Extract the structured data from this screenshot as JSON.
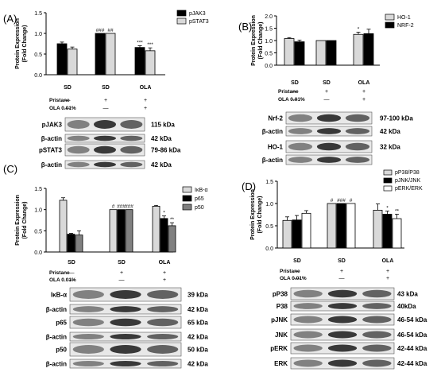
{
  "colors": {
    "black": "#000000",
    "light_gray": "#d9d9d9",
    "dark_gray": "#808080",
    "white": "#ffffff",
    "blot_bg": "#e8e8e8"
  },
  "common": {
    "ylabel_line1": "Protein Expression",
    "ylabel_line2": "(Fold Change)",
    "pristane_label": "Pristane",
    "ola_label": "OLA  0.01%",
    "pristane_signs": [
      "—",
      "+",
      "+"
    ],
    "ola_signs": [
      "—",
      "—",
      "+"
    ],
    "group_labels": [
      "SD",
      "SD",
      "OLA"
    ]
  },
  "chart_data": [
    {
      "panel": "(A)",
      "type": "bar",
      "categories": [
        "SD",
        "SD",
        "OLA"
      ],
      "ylim": [
        0,
        1.5
      ],
      "yticks": [
        "0.0",
        "0.5",
        "1.0",
        "1.5"
      ],
      "tick_values": [
        0,
        0.5,
        1.0,
        1.5
      ],
      "series": [
        {
          "name": "pJAK3",
          "color": "black",
          "values": [
            0.75,
            1.0,
            0.66
          ],
          "errors": [
            0.04,
            0,
            0.04
          ],
          "sig": [
            "",
            "###",
            "***"
          ]
        },
        {
          "name": "pSTAT3",
          "color": "light_gray",
          "values": [
            0.62,
            1.0,
            0.58
          ],
          "errors": [
            0.05,
            0,
            0.07
          ],
          "sig": [
            "",
            "##",
            "***"
          ]
        }
      ],
      "blots": [
        {
          "label": "pJAK3",
          "kda": "115 kDa"
        },
        {
          "label": "β-actin",
          "kda": "42 kDa"
        },
        {
          "label": "pSTAT3",
          "kda": "79-86 kDa"
        },
        {
          "label": "β-actin",
          "kda": "42 kDa"
        }
      ]
    },
    {
      "panel": "(B)",
      "type": "bar",
      "categories": [
        "SD",
        "SD",
        "OLA"
      ],
      "ylim": [
        0,
        2.0
      ],
      "yticks": [
        "0.0",
        "0.5",
        "1.0",
        "1.5",
        "2.0"
      ],
      "tick_values": [
        0,
        0.5,
        1.0,
        1.5,
        2.0
      ],
      "series": [
        {
          "name": "HO-1",
          "color": "light_gray",
          "values": [
            1.08,
            1.0,
            1.25
          ],
          "errors": [
            0.04,
            0,
            0.09
          ],
          "sig": [
            "",
            "",
            "*"
          ]
        },
        {
          "name": "NRF-2",
          "color": "black",
          "values": [
            0.95,
            1.0,
            1.28
          ],
          "errors": [
            0.07,
            0,
            0.18
          ],
          "sig": [
            "",
            "",
            ""
          ]
        }
      ],
      "blots": [
        {
          "label": "Nrf-2",
          "kda": "97-100 kDa"
        },
        {
          "label": "β-actin",
          "kda": "42 kDa"
        },
        {
          "label": "HO-1",
          "kda": "32 kDa"
        },
        {
          "label": "β-actin",
          "kda": ""
        }
      ]
    },
    {
      "panel": "(C)",
      "type": "bar",
      "categories": [
        "SD",
        "SD",
        "OLA"
      ],
      "ylim": [
        0,
        1.5
      ],
      "yticks": [
        "0.0",
        "0.5",
        "1.0",
        "1.5"
      ],
      "tick_values": [
        0,
        0.5,
        1.0,
        1.5
      ],
      "series": [
        {
          "name": "IκB-α",
          "color": "light_gray",
          "values": [
            1.22,
            1.0,
            1.08
          ],
          "errors": [
            0.06,
            0,
            0.02
          ],
          "sig": [
            "",
            "#",
            ""
          ]
        },
        {
          "name": "p65",
          "color": "black",
          "values": [
            0.42,
            1.0,
            0.79
          ],
          "errors": [
            0.02,
            0,
            0.06
          ],
          "sig": [
            "",
            "###",
            "*"
          ]
        },
        {
          "name": "p50",
          "color": "dark_gray",
          "values": [
            0.4,
            1.0,
            0.62
          ],
          "errors": [
            0.1,
            0,
            0.07
          ],
          "sig": [
            "",
            "###",
            "**"
          ]
        }
      ],
      "blots": [
        {
          "label": "IκB-α",
          "kda": "39 kDa"
        },
        {
          "label": "β-actin",
          "kda": "42 kDa"
        },
        {
          "label": "p65",
          "kda": "65 kDa"
        },
        {
          "label": "β-actin",
          "kda": "42 kDa"
        },
        {
          "label": "p50",
          "kda": "50 kDa"
        },
        {
          "label": "β-actin",
          "kda": "42 kDa"
        }
      ]
    },
    {
      "panel": "(D)",
      "type": "bar",
      "categories": [
        "SD",
        "SD",
        "OLA"
      ],
      "ylim": [
        0,
        1.5
      ],
      "yticks": [
        "0.0",
        "0.5",
        "1.0",
        "1.5"
      ],
      "tick_values": [
        0,
        0.5,
        1.0,
        1.5
      ],
      "series": [
        {
          "name": "pP38/P38",
          "color": "light_gray",
          "values": [
            0.62,
            1.0,
            0.85
          ],
          "errors": [
            0.08,
            0,
            0.14
          ],
          "sig": [
            "",
            "#",
            ""
          ]
        },
        {
          "name": "pJNK/JNK",
          "color": "black",
          "values": [
            0.63,
            1.0,
            0.76
          ],
          "errors": [
            0.1,
            0,
            0.07
          ],
          "sig": [
            "",
            "###",
            "*"
          ]
        },
        {
          "name": "pERK/ERK",
          "color": "white",
          "values": [
            0.78,
            1.0,
            0.66
          ],
          "errors": [
            0.06,
            0,
            0.1
          ],
          "sig": [
            "",
            "#",
            "**"
          ]
        }
      ],
      "blots": [
        {
          "label": "pP38",
          "kda": "43 kDa"
        },
        {
          "label": "P38",
          "kda": "40kDa"
        },
        {
          "label": "pJNK",
          "kda": "46-54 kDa"
        },
        {
          "label": "JNK",
          "kda": "46-54 kDa"
        },
        {
          "label": "pERK",
          "kda": "42-44 kDa"
        },
        {
          "label": "ERK",
          "kda": "42-44 kDa"
        }
      ]
    }
  ]
}
